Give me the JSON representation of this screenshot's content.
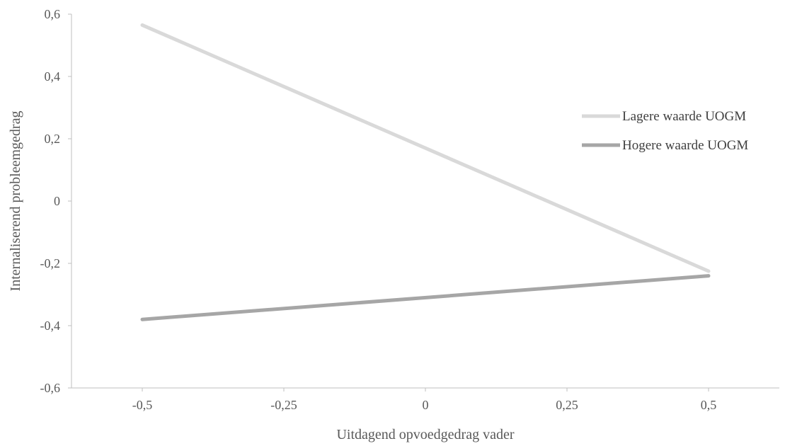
{
  "chart_data": {
    "type": "line",
    "xlabel": "Uitdagend opvoedgedrag vader",
    "ylabel": "Internaliserend probleemgedrag",
    "xlim": [
      -0.625,
      0.625
    ],
    "ylim": [
      -0.6,
      0.6
    ],
    "x_ticks": [
      -0.5,
      -0.25,
      0,
      0.25,
      0.5
    ],
    "x_tick_labels": [
      "-0,5",
      "-0,25",
      "0",
      "0,25",
      "0,5"
    ],
    "y_ticks": [
      -0.6,
      -0.4,
      -0.2,
      0,
      0.2,
      0.4,
      0.6
    ],
    "y_tick_labels": [
      "-0,6",
      "-0,4",
      "-0,2",
      "0",
      "0,2",
      "0,4",
      "0,6"
    ],
    "grid": false,
    "legend_position": "right",
    "series": [
      {
        "name": "Lagere waarde UOGM",
        "x": [
          -0.5,
          0.5
        ],
        "values": [
          0.565,
          -0.225
        ],
        "color": "#d9d9d9"
      },
      {
        "name": "Hogere waarde UOGM",
        "x": [
          -0.5,
          0.5
        ],
        "values": [
          -0.38,
          -0.24
        ],
        "color": "#a6a6a6"
      }
    ]
  }
}
